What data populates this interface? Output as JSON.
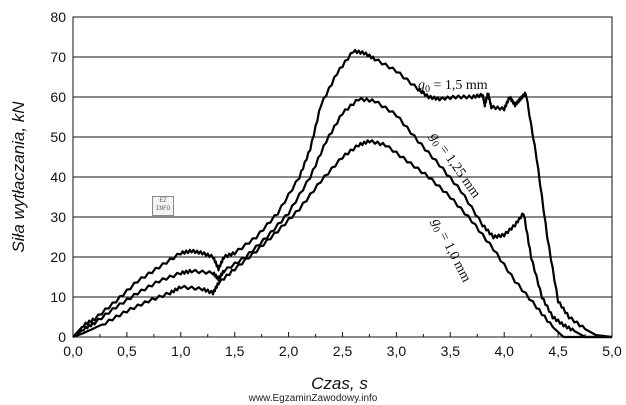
{
  "chart_data": {
    "type": "line",
    "xlabel": "Czas, s",
    "ylabel": "Siła wytłaczania, kN",
    "xlim": [
      0,
      5.0
    ],
    "ylim": [
      0,
      80
    ],
    "xticks": [
      "0,0",
      "0,5",
      "1,0",
      "1,5",
      "2,0",
      "2,5",
      "3,0",
      "3,5",
      "4,0",
      "4,5",
      "5,0"
    ],
    "yticks": [
      "0",
      "10",
      "20",
      "30",
      "40",
      "50",
      "60",
      "70",
      "80"
    ],
    "grid": "horizontal",
    "series": [
      {
        "name": "g0 = 1,5 mm",
        "points": [
          [
            0.0,
            0
          ],
          [
            0.1,
            3
          ],
          [
            0.2,
            4.5
          ],
          [
            0.4,
            9
          ],
          [
            0.6,
            14
          ],
          [
            0.8,
            17.5
          ],
          [
            1.0,
            21
          ],
          [
            1.1,
            21.5
          ],
          [
            1.2,
            21
          ],
          [
            1.3,
            20
          ],
          [
            1.35,
            17
          ],
          [
            1.4,
            20
          ],
          [
            1.5,
            21
          ],
          [
            1.7,
            25
          ],
          [
            1.9,
            31
          ],
          [
            2.1,
            40
          ],
          [
            2.2,
            47
          ],
          [
            2.3,
            58
          ],
          [
            2.45,
            66
          ],
          [
            2.6,
            71.5
          ],
          [
            2.7,
            71
          ],
          [
            2.8,
            69.5
          ],
          [
            3.0,
            66.5
          ],
          [
            3.2,
            62
          ],
          [
            3.3,
            60
          ],
          [
            3.4,
            59.5
          ],
          [
            3.55,
            60
          ],
          [
            3.7,
            60
          ],
          [
            3.8,
            60.5
          ],
          [
            3.82,
            58
          ],
          [
            3.85,
            61
          ],
          [
            3.88,
            57.5
          ],
          [
            4.0,
            57
          ],
          [
            4.05,
            60
          ],
          [
            4.1,
            58
          ],
          [
            4.15,
            59.5
          ],
          [
            4.2,
            61
          ],
          [
            4.3,
            45
          ],
          [
            4.4,
            25
          ],
          [
            4.5,
            9
          ],
          [
            4.6,
            5
          ],
          [
            4.75,
            2
          ],
          [
            4.85,
            0.5
          ],
          [
            5.0,
            0
          ]
        ]
      },
      {
        "name": "g0 = 1,25 mm",
        "points": [
          [
            0.0,
            0
          ],
          [
            0.1,
            2
          ],
          [
            0.2,
            3.5
          ],
          [
            0.4,
            7.5
          ],
          [
            0.6,
            11
          ],
          [
            0.8,
            14
          ],
          [
            1.0,
            16
          ],
          [
            1.1,
            16.5
          ],
          [
            1.3,
            16
          ],
          [
            1.35,
            14.5
          ],
          [
            1.4,
            16.5
          ],
          [
            1.6,
            20
          ],
          [
            1.8,
            25
          ],
          [
            2.0,
            31
          ],
          [
            2.2,
            40
          ],
          [
            2.35,
            49
          ],
          [
            2.5,
            56
          ],
          [
            2.65,
            59.5
          ],
          [
            2.8,
            59
          ],
          [
            3.0,
            55.5
          ],
          [
            3.2,
            49
          ],
          [
            3.4,
            43
          ],
          [
            3.6,
            36.5
          ],
          [
            3.8,
            28
          ],
          [
            3.9,
            25
          ],
          [
            4.0,
            25.5
          ],
          [
            4.1,
            28
          ],
          [
            4.18,
            31
          ],
          [
            4.25,
            20
          ],
          [
            4.35,
            10
          ],
          [
            4.45,
            5
          ],
          [
            4.55,
            3
          ],
          [
            4.65,
            1.5
          ],
          [
            4.75,
            0
          ],
          [
            5.0,
            0
          ]
        ]
      },
      {
        "name": "g0 = 1,0 mm",
        "points": [
          [
            0.0,
            0
          ],
          [
            0.1,
            1
          ],
          [
            0.3,
            3.5
          ],
          [
            0.5,
            6.5
          ],
          [
            0.7,
            9
          ],
          [
            0.9,
            11
          ],
          [
            1.0,
            12.5
          ],
          [
            1.2,
            12
          ],
          [
            1.3,
            11
          ],
          [
            1.35,
            13.5
          ],
          [
            1.5,
            17
          ],
          [
            1.7,
            21.5
          ],
          [
            1.9,
            26.5
          ],
          [
            2.1,
            32
          ],
          [
            2.3,
            39
          ],
          [
            2.5,
            45
          ],
          [
            2.65,
            48
          ],
          [
            2.75,
            49
          ],
          [
            2.9,
            48
          ],
          [
            3.1,
            44
          ],
          [
            3.3,
            40
          ],
          [
            3.5,
            35
          ],
          [
            3.7,
            29
          ],
          [
            3.9,
            22
          ],
          [
            4.1,
            14
          ],
          [
            4.3,
            7.5
          ],
          [
            4.45,
            2.5
          ],
          [
            4.55,
            0
          ],
          [
            5.0,
            0
          ]
        ]
      }
    ],
    "annotations": [
      {
        "base": "g",
        "sub": "0",
        "text": " = 1,5 mm"
      },
      {
        "base": "g",
        "sub": "0",
        "text": " = 1,25 mm"
      },
      {
        "base": "g",
        "sub": "0",
        "text": " = 1,0 mm"
      }
    ]
  },
  "watermark": "www.EgzaminZawodowy.info",
  "logo_text": "EZ INFO"
}
